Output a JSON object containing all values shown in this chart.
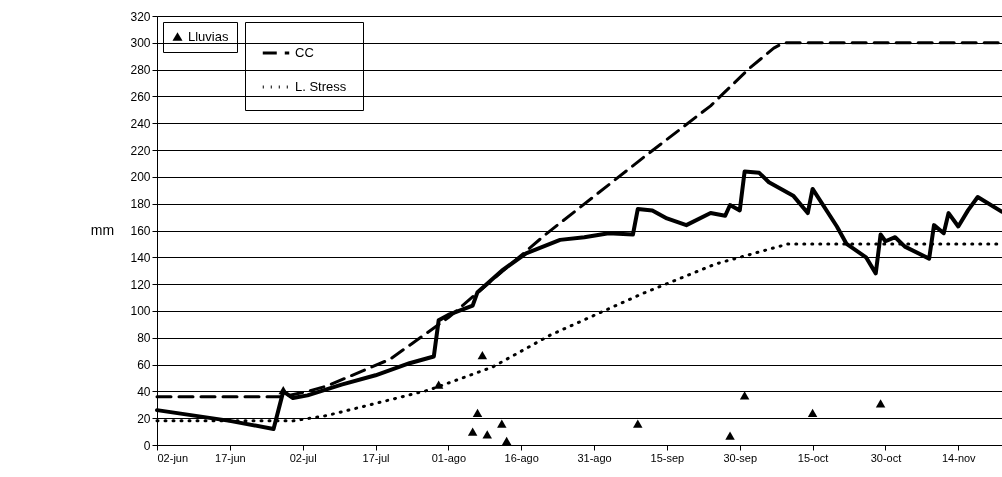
{
  "chart_data": {
    "type": "line",
    "ylabel": "mm",
    "xlim": [
      "--06-02",
      "--11-23"
    ],
    "ylim": [
      0,
      320
    ],
    "yticks": [
      0,
      20,
      40,
      60,
      80,
      100,
      120,
      140,
      160,
      180,
      200,
      220,
      240,
      260,
      280,
      300,
      320
    ],
    "xticks": [
      {
        "value": "--06-02",
        "label": "02-jun"
      },
      {
        "value": "--06-17",
        "label": "17-jun"
      },
      {
        "value": "--07-02",
        "label": "02-jul"
      },
      {
        "value": "--07-17",
        "label": "17-jul"
      },
      {
        "value": "--08-01",
        "label": "01-ago"
      },
      {
        "value": "--08-16",
        "label": "16-ago"
      },
      {
        "value": "--08-31",
        "label": "31-ago"
      },
      {
        "value": "--09-15",
        "label": "15-sep"
      },
      {
        "value": "--09-30",
        "label": "30-sep"
      },
      {
        "value": "--10-15",
        "label": "15-oct"
      },
      {
        "value": "--10-30",
        "label": "30-oct"
      },
      {
        "value": "--11-14",
        "label": "14-nov"
      }
    ],
    "grid": "y",
    "legend": "top left",
    "series": [
      {
        "type": "line",
        "line_style": "solid",
        "color": "#000000",
        "x": [
          "--06-02",
          "--06-17",
          "--06-26",
          "--06-28",
          "--06-30",
          "--07-03",
          "--07-10",
          "--07-17",
          "--07-24",
          "--07-29",
          "--07-30",
          "--08-01",
          "--08-06",
          "--08-07",
          "--08-12",
          "--08-17",
          "--08-24",
          "--08-29",
          "--09-03",
          "--09-08",
          "--09-09",
          "--09-12",
          "--09-15",
          "--09-19",
          "--09-24",
          "--09-27",
          "--09-28",
          "--09-30",
          "--10-01",
          "--10-04",
          "--10-06",
          "--10-11",
          "--10-14",
          "--10-15",
          "--10-20",
          "--10-22",
          "--10-26",
          "--10-28",
          "--10-29",
          "--10-30",
          "--11-01",
          "--11-03",
          "--11-08",
          "--11-09",
          "--11-11",
          "--11-12",
          "--11-14",
          "--11-16",
          "--11-18",
          "--11-23"
        ],
        "values": [
          26,
          18,
          12,
          40,
          35,
          37,
          45,
          52,
          61,
          66,
          93,
          97,
          104,
          114,
          130,
          143,
          153,
          155,
          158,
          157,
          176,
          175,
          169,
          164,
          173,
          171,
          179,
          175,
          204,
          203,
          196,
          186,
          173,
          191,
          163,
          150,
          140,
          128,
          157,
          152,
          155,
          148,
          139,
          164,
          158,
          173,
          163,
          175,
          185,
          174
        ]
      },
      {
        "name": "Lluvias",
        "type": "scatter",
        "marker": "triangle",
        "color": "#000000",
        "x": [
          "--06-28",
          "--07-30",
          "--08-06",
          "--08-07",
          "--08-08",
          "--08-09",
          "--08-12",
          "--08-13",
          "--09-09",
          "--09-28",
          "--10-01",
          "--10-15",
          "--10-29"
        ],
        "values": [
          41,
          45,
          10,
          24,
          67,
          8,
          16,
          3,
          16,
          7,
          37,
          24,
          31
        ]
      },
      {
        "name": "CC",
        "type": "line",
        "line_style": "dashed",
        "color": "#000000",
        "x": [
          "--06-02",
          "--06-28",
          "--07-03",
          "--07-07",
          "--07-20",
          "--08-01",
          "--08-21",
          "--09-10",
          "--09-24",
          "--10-02",
          "--10-07",
          "--10-09",
          "--11-23"
        ],
        "values": [
          36,
          36,
          40,
          44,
          64,
          95,
          157,
          214,
          253,
          281,
          296,
          300,
          300
        ]
      },
      {
        "name": "L. Stress",
        "type": "line",
        "line_style": "dotted",
        "color": "#000000",
        "x": [
          "--06-02",
          "--06-30",
          "--07-07",
          "--07-17",
          "--07-28",
          "--08-10",
          "--08-22",
          "--09-10",
          "--09-25",
          "--10-06",
          "--10-10",
          "--11-23"
        ],
        "values": [
          18,
          18,
          22,
          31,
          41,
          58,
          82,
          113,
          135,
          146,
          150,
          150
        ]
      }
    ]
  }
}
